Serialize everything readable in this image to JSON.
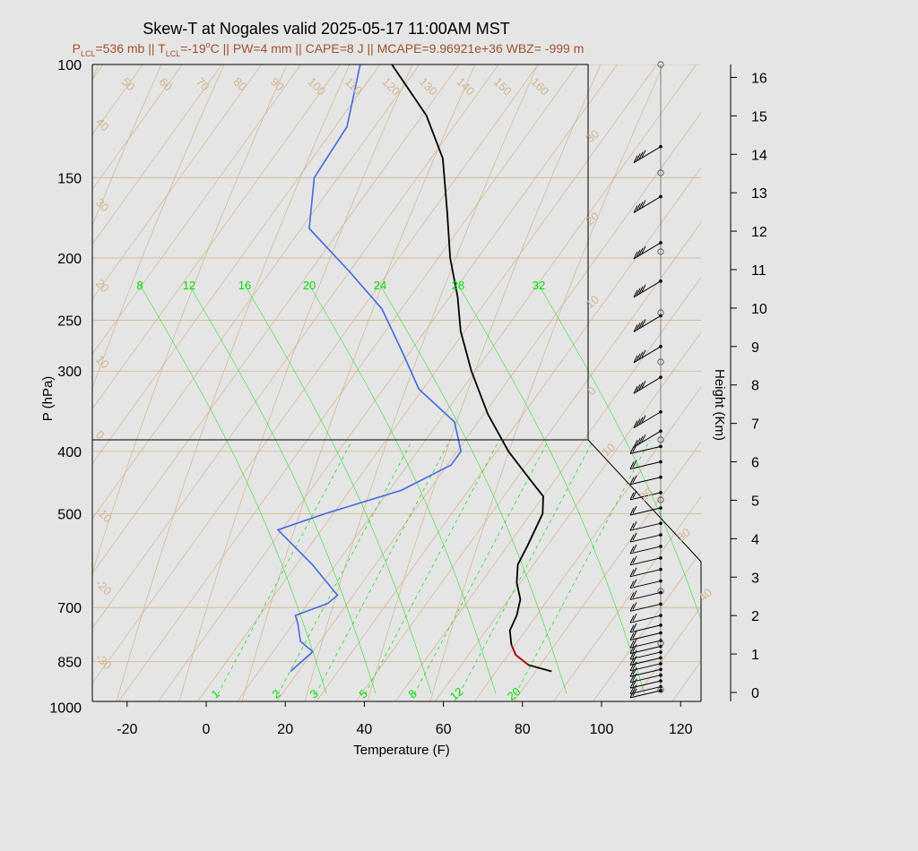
{
  "title": "Skew-T at Nogales valid 2025-05-17 11:00AM MST",
  "subtitle": {
    "lcl_p_prefix": "P",
    "lcl_p_sub": "LCL",
    "lcl_p_val": "=536 mb || ",
    "lcl_t_prefix": "T",
    "lcl_t_sub": "LCL",
    "lcl_t_val": "=-19",
    "lcl_t_sup": "o",
    "rest": "C || PW=4 mm || CAPE=8 J || MCAPE=9.96921e+36 WBZ= -999 m"
  },
  "colors": {
    "temperature": "#000000",
    "dewpoint": "#4169e1",
    "parcel": "#cc0000",
    "isotherm": "#d2b48c",
    "mixing_ratio": "#00e000",
    "background": "#e5e5e5"
  },
  "chart_data": {
    "type": "skew-t",
    "xlabel": "Temperature (F)",
    "ylabel": "P (hPa)",
    "y2label": "Height (Km)",
    "xlim": [
      -28,
      125
    ],
    "ylim": [
      1050,
      100
    ],
    "x_ticks": [
      "-20",
      "0",
      "20",
      "40",
      "60",
      "80",
      "100",
      "120"
    ],
    "p_ticks": [
      "100",
      "150",
      "200",
      "250",
      "300",
      "400",
      "500",
      "700",
      "850",
      "1000"
    ],
    "height_ticks": [
      "0",
      "1",
      "2",
      "3",
      "4",
      "5",
      "6",
      "7",
      "8",
      "9",
      "10",
      "11",
      "12",
      "13",
      "14",
      "15",
      "16"
    ],
    "isotherm_labels": [
      "50",
      "60",
      "70",
      "80",
      "90",
      "100",
      "110",
      "120",
      "130",
      "140",
      "150",
      "160"
    ],
    "dry_adiabat_labels": [
      "40",
      "30",
      "20",
      "10",
      "0",
      "-10",
      "-20",
      "-30"
    ],
    "moist_adiabat_labels": [
      "30",
      "20",
      "10",
      "0",
      "10",
      "20",
      "30",
      "40"
    ],
    "mixing_ratio_top_labels": [
      "8",
      "12",
      "16",
      "20",
      "24",
      "28",
      "32"
    ],
    "mixing_ratio_bottom_labels": [
      "1",
      "2",
      "3",
      "5",
      "8",
      "12",
      "20"
    ],
    "temperature": [
      {
        "p": 880,
        "t": 84
      },
      {
        "p": 860,
        "t": 77
      },
      {
        "p": 830,
        "t": 72
      },
      {
        "p": 800,
        "t": 69
      },
      {
        "p": 760,
        "t": 66
      },
      {
        "p": 720,
        "t": 65
      },
      {
        "p": 680,
        "t": 63
      },
      {
        "p": 640,
        "t": 59
      },
      {
        "p": 600,
        "t": 56
      },
      {
        "p": 560,
        "t": 55
      },
      {
        "p": 500,
        "t": 53
      },
      {
        "p": 470,
        "t": 50
      },
      {
        "p": 440,
        "t": 43
      },
      {
        "p": 400,
        "t": 33
      },
      {
        "p": 350,
        "t": 21
      },
      {
        "p": 300,
        "t": 9
      },
      {
        "p": 260,
        "t": -1
      },
      {
        "p": 230,
        "t": -8
      },
      {
        "p": 200,
        "t": -17
      },
      {
        "p": 170,
        "t": -26
      },
      {
        "p": 140,
        "t": -37
      },
      {
        "p": 120,
        "t": -49
      },
      {
        "p": 100,
        "t": -67
      }
    ],
    "dewpoint": [
      {
        "p": 880,
        "t": 18
      },
      {
        "p": 820,
        "t": 20
      },
      {
        "p": 790,
        "t": 15
      },
      {
        "p": 740,
        "t": 11
      },
      {
        "p": 720,
        "t": 9
      },
      {
        "p": 690,
        "t": 15
      },
      {
        "p": 670,
        "t": 16
      },
      {
        "p": 600,
        "t": 4
      },
      {
        "p": 530,
        "t": -11
      },
      {
        "p": 500,
        "t": -2
      },
      {
        "p": 460,
        "t": 13
      },
      {
        "p": 420,
        "t": 21
      },
      {
        "p": 400,
        "t": 21
      },
      {
        "p": 360,
        "t": 14
      },
      {
        "p": 320,
        "t": -1
      },
      {
        "p": 280,
        "t": -12
      },
      {
        "p": 240,
        "t": -25
      },
      {
        "p": 210,
        "t": -40
      },
      {
        "p": 180,
        "t": -58
      },
      {
        "p": 150,
        "t": -66
      },
      {
        "p": 125,
        "t": -67
      },
      {
        "p": 100,
        "t": -75
      }
    ],
    "parcel": [
      {
        "p": 860,
        "t": 77
      },
      {
        "p": 830,
        "t": 72
      },
      {
        "p": 800,
        "t": 69
      }
    ],
    "wind_barb_heights_km": [
      0.05,
      0.15,
      0.3,
      0.45,
      0.6,
      0.75,
      0.9,
      1.05,
      1.2,
      1.35,
      1.55,
      1.75,
      2.0,
      2.3,
      2.6,
      2.9,
      3.2,
      3.5,
      3.8,
      4.1,
      4.4,
      4.8,
      5.2,
      5.6,
      6.0,
      6.4,
      6.8,
      7.3,
      8.2,
      9.0,
      9.8,
      10.7,
      11.7,
      12.9,
      14.2
    ]
  }
}
